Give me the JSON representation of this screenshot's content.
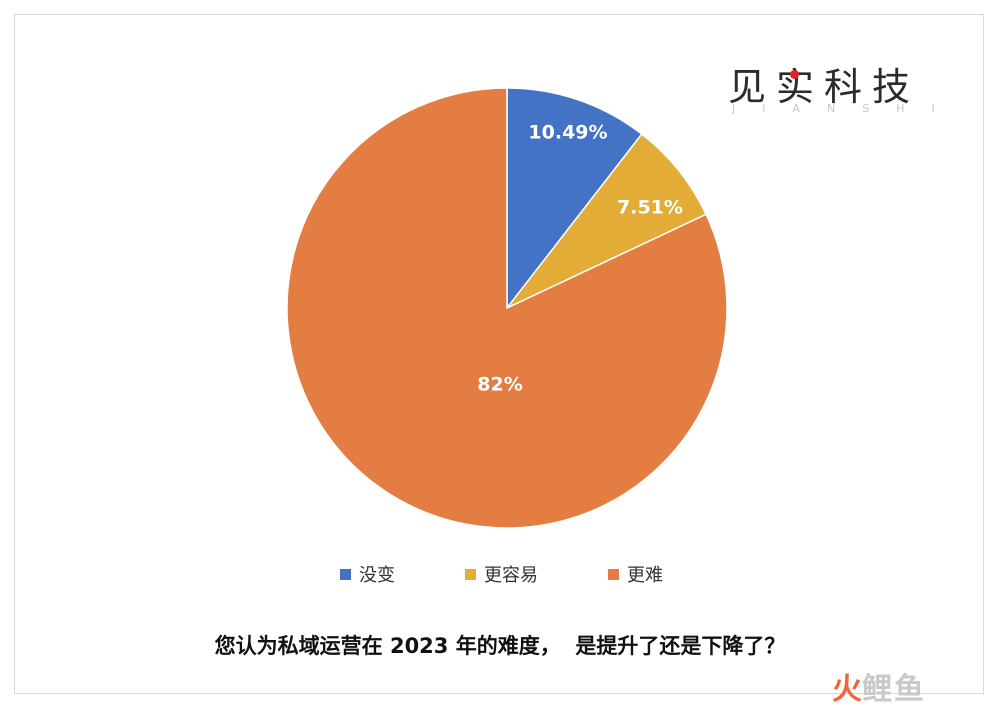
{
  "logo": {
    "main": "见实科技",
    "sub": "JIANSHI"
  },
  "chart_data": {
    "type": "pie",
    "title": "您认为私域运营在 2023 年的难度，  是提升了还是下降了？",
    "slices": [
      {
        "name": "没变",
        "value": 10.49,
        "label": "10.49%",
        "color": "#4472c4"
      },
      {
        "name": "更容易",
        "value": 7.51,
        "label": "7.51%",
        "color": "#e2ac36"
      },
      {
        "name": "更难",
        "value": 82,
        "label": "82%",
        "color": "#e47d42"
      }
    ],
    "start": "12 o'clock, clockwise",
    "legend_position": "bottom"
  },
  "watermark": {
    "fire": "火",
    "rest": "鲤鱼"
  }
}
